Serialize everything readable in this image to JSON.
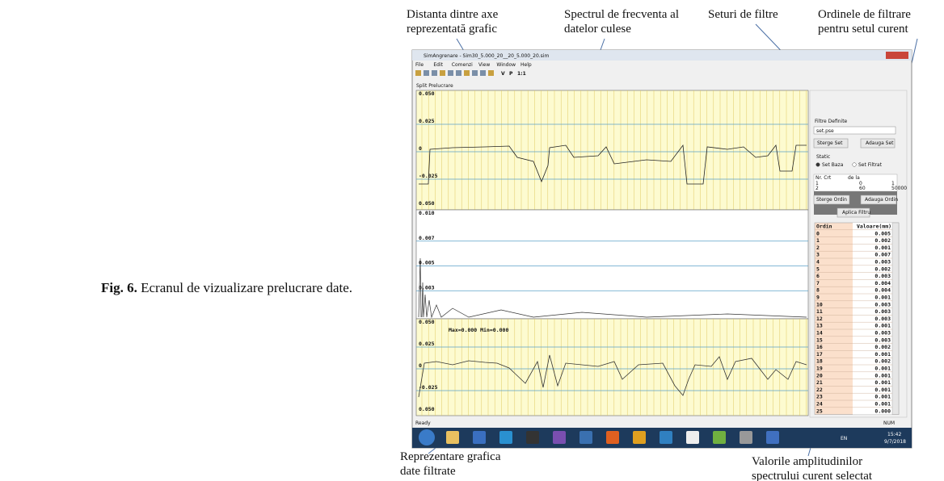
{
  "caption": {
    "label": "Fig. 6.",
    "text": "Ecranul de vizualizare prelucrare date."
  },
  "annotations": {
    "distance": [
      "Distanta dintre axe",
      "reprezentată grafic"
    ],
    "spectrum": [
      "Spectrul de frecventa al",
      "datelor culese"
    ],
    "sets": [
      "Seturi de filtre"
    ],
    "orders": [
      "Ordinele de filtrare",
      "pentru setul curent"
    ],
    "filtered": [
      "Reprezentare grafica",
      "date filtrate"
    ],
    "amplitudes": [
      "Valorile amplitudinilor",
      "spectrului curent selectat"
    ]
  },
  "window": {
    "title": "SimAngrenare - Sim30_5.000_20__20_5.000_20.sim",
    "menu": [
      "File",
      "Edit",
      "Comenzi",
      "View",
      "Window",
      "Help"
    ],
    "toolbar": [
      "V",
      "P",
      "1:1"
    ],
    "tab": "Split Prelucrare",
    "status": "Ready",
    "num": "NUM"
  },
  "plots": [
    {
      "ticks": [
        "0.050",
        "0.025",
        "0",
        "-0.025",
        "0.050"
      ]
    },
    {
      "ticks": [
        "0.010",
        "0.007",
        "0.005",
        "0.003"
      ]
    },
    {
      "ticks": [
        "0.050",
        "0.025",
        "0",
        "-0.025",
        "0.050"
      ],
      "note": "Max=0.000  Min=0.000"
    }
  ],
  "panel": {
    "group": "Filtre Definite",
    "select": "set.pse",
    "buttons": [
      "Sterge Set",
      "Adauga Set"
    ],
    "static": "Static",
    "radios": [
      "Set Baza",
      "Set Filtrat"
    ],
    "sets_header": [
      "Nr. Crt",
      "de la"
    ],
    "sets_rows": [
      [
        "1",
        "0",
        "1"
      ],
      [
        "2",
        "60",
        "50000"
      ]
    ],
    "order_buttons": [
      "Sterge Ordin",
      "Adauga Ordin"
    ],
    "apply": "Aplica Filtru"
  },
  "table": {
    "header": [
      "Ordin",
      "Valoare(mm)"
    ],
    "rows": [
      [
        "0",
        "0.005"
      ],
      [
        "1",
        "0.002"
      ],
      [
        "2",
        "0.001"
      ],
      [
        "3",
        "0.007"
      ],
      [
        "4",
        "0.003"
      ],
      [
        "5",
        "0.002"
      ],
      [
        "6",
        "0.003"
      ],
      [
        "7",
        "0.004"
      ],
      [
        "8",
        "0.004"
      ],
      [
        "9",
        "0.001"
      ],
      [
        "10",
        "0.003"
      ],
      [
        "11",
        "0.003"
      ],
      [
        "12",
        "0.003"
      ],
      [
        "13",
        "0.001"
      ],
      [
        "14",
        "0.003"
      ],
      [
        "15",
        "0.003"
      ],
      [
        "16",
        "0.002"
      ],
      [
        "17",
        "0.001"
      ],
      [
        "18",
        "0.002"
      ],
      [
        "19",
        "0.001"
      ],
      [
        "20",
        "0.001"
      ],
      [
        "21",
        "0.001"
      ],
      [
        "22",
        "0.001"
      ],
      [
        "23",
        "0.001"
      ],
      [
        "24",
        "0.001"
      ],
      [
        "25",
        "0.000"
      ]
    ]
  },
  "taskbar": {
    "lang": "EN",
    "time": "15:42",
    "date": "9/7/2018"
  }
}
